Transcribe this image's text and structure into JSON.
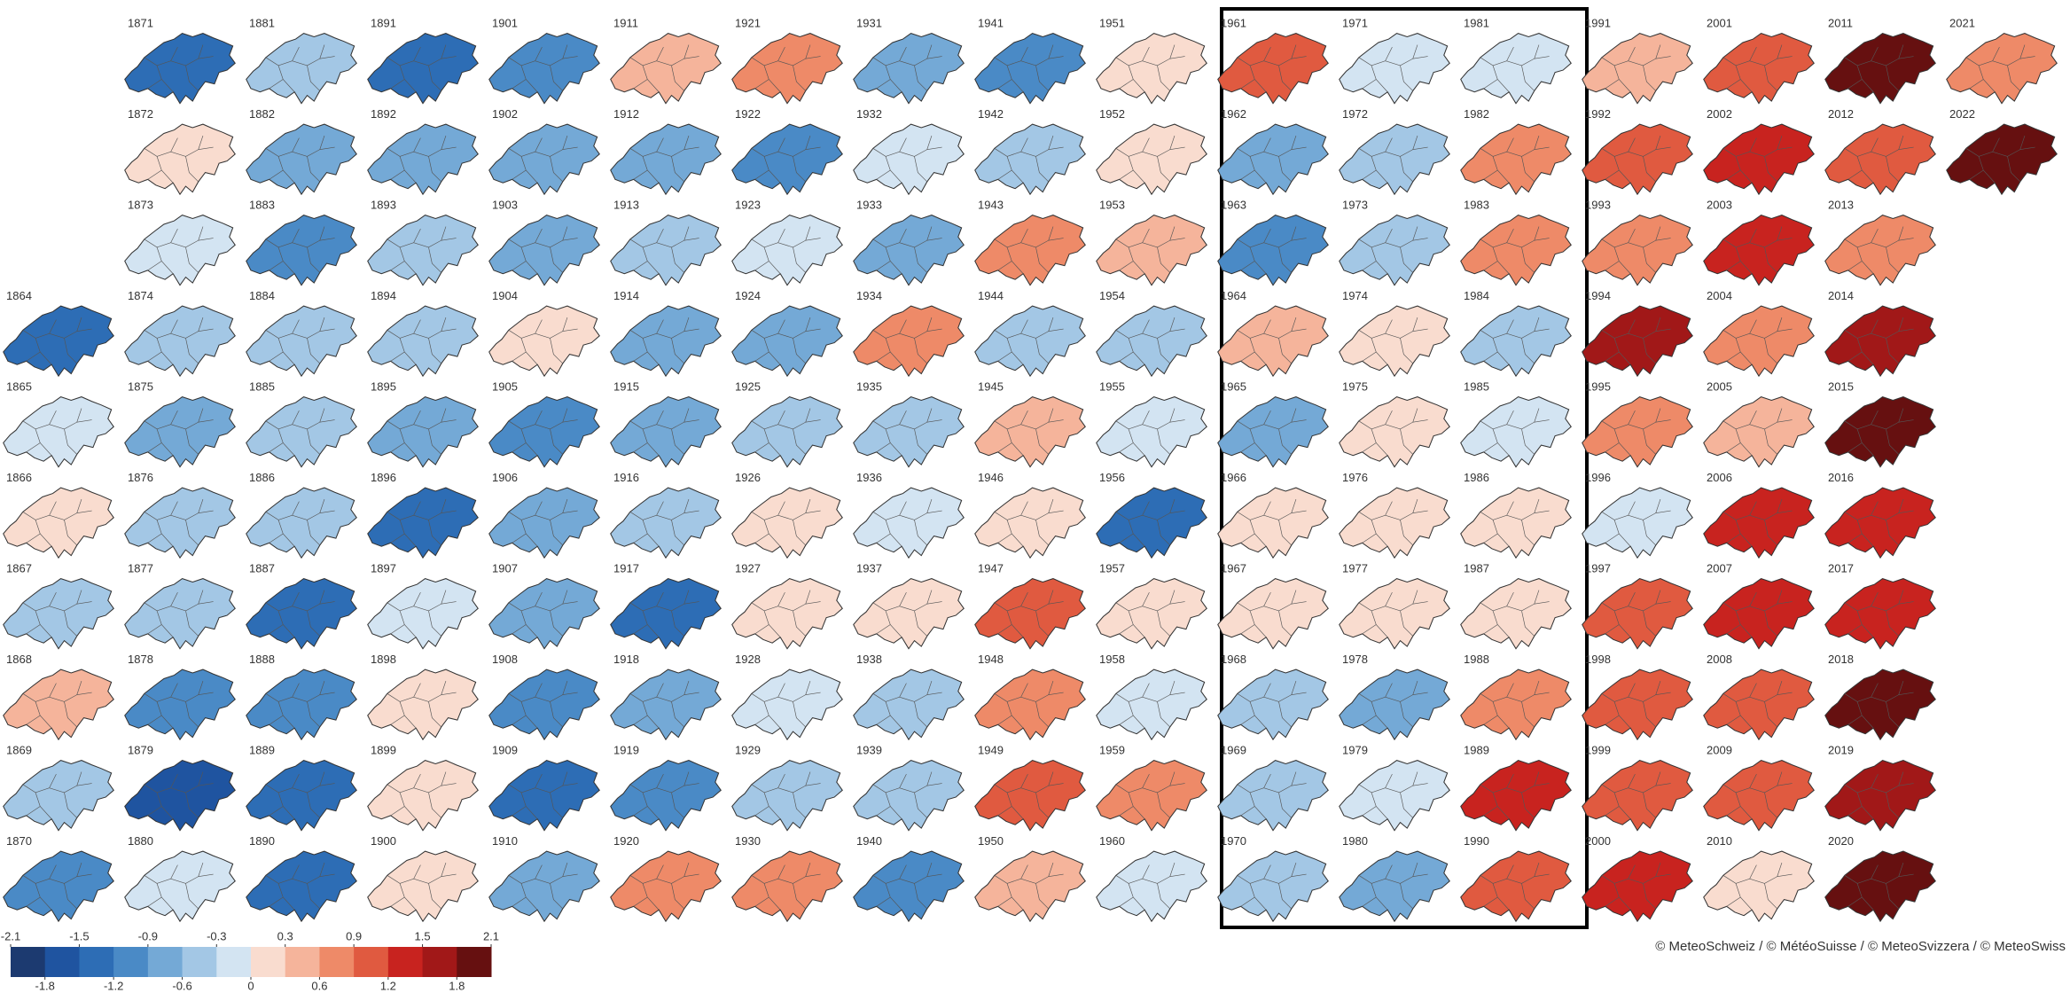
{
  "maps": [
    {
      "year": 1864,
      "color": "#2d6db5"
    },
    {
      "year": 1865,
      "color": "#d3e4f2"
    },
    {
      "year": 1866,
      "color": "#f9dccf"
    },
    {
      "year": 1867,
      "color": "#a3c7e5"
    },
    {
      "year": 1868,
      "color": "#f5b49b"
    },
    {
      "year": 1869,
      "color": "#a3c7e5"
    },
    {
      "year": 1870,
      "color": "#4a8ac6"
    },
    {
      "year": 1871,
      "color": "#2d6db5"
    },
    {
      "year": 1872,
      "color": "#f9dccf"
    },
    {
      "year": 1873,
      "color": "#d3e4f2"
    },
    {
      "year": 1874,
      "color": "#a3c7e5"
    },
    {
      "year": 1875,
      "color": "#74a9d6"
    },
    {
      "year": 1876,
      "color": "#a3c7e5"
    },
    {
      "year": 1877,
      "color": "#a3c7e5"
    },
    {
      "year": 1878,
      "color": "#4a8ac6"
    },
    {
      "year": 1879,
      "color": "#1f54a0"
    },
    {
      "year": 1880,
      "color": "#d3e4f2"
    },
    {
      "year": 1881,
      "color": "#a3c7e5"
    },
    {
      "year": 1882,
      "color": "#74a9d6"
    },
    {
      "year": 1883,
      "color": "#4a8ac6"
    },
    {
      "year": 1884,
      "color": "#a3c7e5"
    },
    {
      "year": 1885,
      "color": "#a3c7e5"
    },
    {
      "year": 1886,
      "color": "#a3c7e5"
    },
    {
      "year": 1887,
      "color": "#2d6db5"
    },
    {
      "year": 1888,
      "color": "#4a8ac6"
    },
    {
      "year": 1889,
      "color": "#2d6db5"
    },
    {
      "year": 1890,
      "color": "#2d6db5"
    },
    {
      "year": 1891,
      "color": "#2d6db5"
    },
    {
      "year": 1892,
      "color": "#74a9d6"
    },
    {
      "year": 1893,
      "color": "#a3c7e5"
    },
    {
      "year": 1894,
      "color": "#a3c7e5"
    },
    {
      "year": 1895,
      "color": "#74a9d6"
    },
    {
      "year": 1896,
      "color": "#2d6db5"
    },
    {
      "year": 1897,
      "color": "#d3e4f2"
    },
    {
      "year": 1898,
      "color": "#f9dccf"
    },
    {
      "year": 1899,
      "color": "#f9dccf"
    },
    {
      "year": 1900,
      "color": "#f9dccf"
    },
    {
      "year": 1901,
      "color": "#4a8ac6"
    },
    {
      "year": 1902,
      "color": "#74a9d6"
    },
    {
      "year": 1903,
      "color": "#74a9d6"
    },
    {
      "year": 1904,
      "color": "#f9dccf"
    },
    {
      "year": 1905,
      "color": "#4a8ac6"
    },
    {
      "year": 1906,
      "color": "#74a9d6"
    },
    {
      "year": 1907,
      "color": "#74a9d6"
    },
    {
      "year": 1908,
      "color": "#4a8ac6"
    },
    {
      "year": 1909,
      "color": "#2d6db5"
    },
    {
      "year": 1910,
      "color": "#74a9d6"
    },
    {
      "year": 1911,
      "color": "#f5b49b"
    },
    {
      "year": 1912,
      "color": "#74a9d6"
    },
    {
      "year": 1913,
      "color": "#a3c7e5"
    },
    {
      "year": 1914,
      "color": "#74a9d6"
    },
    {
      "year": 1915,
      "color": "#74a9d6"
    },
    {
      "year": 1916,
      "color": "#a3c7e5"
    },
    {
      "year": 1917,
      "color": "#2d6db5"
    },
    {
      "year": 1918,
      "color": "#74a9d6"
    },
    {
      "year": 1919,
      "color": "#4a8ac6"
    },
    {
      "year": 1920,
      "color": "#ee8a68"
    },
    {
      "year": 1921,
      "color": "#ee8a68"
    },
    {
      "year": 1922,
      "color": "#4a8ac6"
    },
    {
      "year": 1923,
      "color": "#d3e4f2"
    },
    {
      "year": 1924,
      "color": "#74a9d6"
    },
    {
      "year": 1925,
      "color": "#a3c7e5"
    },
    {
      "year": 1926,
      "color": "#f9dccf"
    },
    {
      "year": 1927,
      "color": "#f9dccf"
    },
    {
      "year": 1928,
      "color": "#d3e4f2"
    },
    {
      "year": 1929,
      "color": "#a3c7e5"
    },
    {
      "year": 1930,
      "color": "#ee8a68"
    },
    {
      "year": 1931,
      "color": "#74a9d6"
    },
    {
      "year": 1932,
      "color": "#d3e4f2"
    },
    {
      "year": 1933,
      "color": "#74a9d6"
    },
    {
      "year": 1934,
      "color": "#ee8a68"
    },
    {
      "year": 1935,
      "color": "#a3c7e5"
    },
    {
      "year": 1936,
      "color": "#d3e4f2"
    },
    {
      "year": 1937,
      "color": "#f9dccf"
    },
    {
      "year": 1938,
      "color": "#a3c7e5"
    },
    {
      "year": 1939,
      "color": "#a3c7e5"
    },
    {
      "year": 1940,
      "color": "#4a8ac6"
    },
    {
      "year": 1941,
      "color": "#4a8ac6"
    },
    {
      "year": 1942,
      "color": "#a3c7e5"
    },
    {
      "year": 1943,
      "color": "#ee8a68"
    },
    {
      "year": 1944,
      "color": "#a3c7e5"
    },
    {
      "year": 1945,
      "color": "#f5b49b"
    },
    {
      "year": 1946,
      "color": "#f9dccf"
    },
    {
      "year": 1947,
      "color": "#e05a40"
    },
    {
      "year": 1948,
      "color": "#ee8a68"
    },
    {
      "year": 1949,
      "color": "#e05a40"
    },
    {
      "year": 1950,
      "color": "#f5b49b"
    },
    {
      "year": 1951,
      "color": "#f9dccf"
    },
    {
      "year": 1952,
      "color": "#f9dccf"
    },
    {
      "year": 1953,
      "color": "#f5b49b"
    },
    {
      "year": 1954,
      "color": "#a3c7e5"
    },
    {
      "year": 1955,
      "color": "#d3e4f2"
    },
    {
      "year": 1956,
      "color": "#2d6db5"
    },
    {
      "year": 1957,
      "color": "#f9dccf"
    },
    {
      "year": 1958,
      "color": "#d3e4f2"
    },
    {
      "year": 1959,
      "color": "#ee8a68"
    },
    {
      "year": 1960,
      "color": "#d3e4f2"
    },
    {
      "year": 1961,
      "color": "#e05a40"
    },
    {
      "year": 1962,
      "color": "#74a9d6"
    },
    {
      "year": 1963,
      "color": "#4a8ac6"
    },
    {
      "year": 1964,
      "color": "#f5b49b"
    },
    {
      "year": 1965,
      "color": "#74a9d6"
    },
    {
      "year": 1966,
      "color": "#f9dccf"
    },
    {
      "year": 1967,
      "color": "#f9dccf"
    },
    {
      "year": 1968,
      "color": "#a3c7e5"
    },
    {
      "year": 1969,
      "color": "#a3c7e5"
    },
    {
      "year": 1970,
      "color": "#a3c7e5"
    },
    {
      "year": 1971,
      "color": "#d3e4f2"
    },
    {
      "year": 1972,
      "color": "#a3c7e5"
    },
    {
      "year": 1973,
      "color": "#a3c7e5"
    },
    {
      "year": 1974,
      "color": "#f9dccf"
    },
    {
      "year": 1975,
      "color": "#f9dccf"
    },
    {
      "year": 1976,
      "color": "#f9dccf"
    },
    {
      "year": 1977,
      "color": "#f9dccf"
    },
    {
      "year": 1978,
      "color": "#74a9d6"
    },
    {
      "year": 1979,
      "color": "#d3e4f2"
    },
    {
      "year": 1980,
      "color": "#74a9d6"
    },
    {
      "year": 1981,
      "color": "#d3e4f2"
    },
    {
      "year": 1982,
      "color": "#ee8a68"
    },
    {
      "year": 1983,
      "color": "#ee8a68"
    },
    {
      "year": 1984,
      "color": "#a3c7e5"
    },
    {
      "year": 1985,
      "color": "#d3e4f2"
    },
    {
      "year": 1986,
      "color": "#f9dccf"
    },
    {
      "year": 1987,
      "color": "#f9dccf"
    },
    {
      "year": 1988,
      "color": "#ee8a68"
    },
    {
      "year": 1989,
      "color": "#c8231f"
    },
    {
      "year": 1990,
      "color": "#e05a40"
    },
    {
      "year": 1991,
      "color": "#f5b49b"
    },
    {
      "year": 1992,
      "color": "#e05a40"
    },
    {
      "year": 1993,
      "color": "#ee8a68"
    },
    {
      "year": 1994,
      "color": "#a11818"
    },
    {
      "year": 1995,
      "color": "#ee8a68"
    },
    {
      "year": 1996,
      "color": "#d3e4f2"
    },
    {
      "year": 1997,
      "color": "#e05a40"
    },
    {
      "year": 1998,
      "color": "#e05a40"
    },
    {
      "year": 1999,
      "color": "#e05a40"
    },
    {
      "year": 2000,
      "color": "#c8231f"
    },
    {
      "year": 2001,
      "color": "#e05a40"
    },
    {
      "year": 2002,
      "color": "#c8231f"
    },
    {
      "year": 2003,
      "color": "#c8231f"
    },
    {
      "year": 2004,
      "color": "#ee8a68"
    },
    {
      "year": 2005,
      "color": "#f5b49b"
    },
    {
      "year": 2006,
      "color": "#c8231f"
    },
    {
      "year": 2007,
      "color": "#c8231f"
    },
    {
      "year": 2008,
      "color": "#e05a40"
    },
    {
      "year": 2009,
      "color": "#e05a40"
    },
    {
      "year": 2010,
      "color": "#f9dccf"
    },
    {
      "year": 2011,
      "color": "#661010"
    },
    {
      "year": 2012,
      "color": "#e05a40"
    },
    {
      "year": 2013,
      "color": "#ee8a68"
    },
    {
      "year": 2014,
      "color": "#a11818"
    },
    {
      "year": 2015,
      "color": "#661010"
    },
    {
      "year": 2016,
      "color": "#c8231f"
    },
    {
      "year": 2017,
      "color": "#c8231f"
    },
    {
      "year": 2018,
      "color": "#661010"
    },
    {
      "year": 2019,
      "color": "#a11818"
    },
    {
      "year": 2020,
      "color": "#661010"
    },
    {
      "year": 2021,
      "color": "#ee8a68"
    },
    {
      "year": 2022,
      "color": "#661010"
    }
  ],
  "colorbar": {
    "lim": [
      -2.1,
      2.1
    ],
    "colors": [
      "#1c3a70",
      "#1f54a0",
      "#2d6db5",
      "#4a8ac6",
      "#74a9d6",
      "#a3c7e5",
      "#d3e4f2",
      "#f9dccf",
      "#f5b49b",
      "#ee8a68",
      "#e05a40",
      "#c8231f",
      "#a11818",
      "#661010"
    ],
    "ticks": [
      -2.1,
      -1.8,
      -1.5,
      -1.2,
      -0.9,
      -0.6,
      -0.3,
      0,
      0.3,
      0.6,
      0.9,
      1.2,
      1.5,
      1.8,
      2.1
    ]
  },
  "credit": "© MeteoSchweiz / © MétéoSuisse / © MeteoSvizzera / © MeteoSwiss"
}
